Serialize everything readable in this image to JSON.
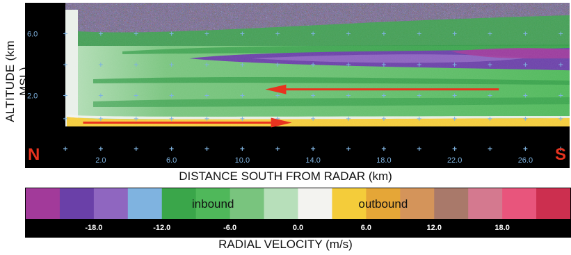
{
  "chart_data": {
    "type": "heatmap",
    "title": "",
    "xlabel": "DISTANCE SOUTH FROM RADAR (km)",
    "ylabel": "ALTITUDE (km MSL)",
    "x_ticks": [
      "2.0",
      "6.0",
      "10.0",
      "14.0",
      "18.0",
      "22.0",
      "26.0"
    ],
    "y_ticks": [
      "2.0",
      "6.0"
    ],
    "xlim": [
      0,
      28.5
    ],
    "ylim": [
      0,
      8
    ],
    "annotations": [
      {
        "text": "N",
        "position": "bottom-left",
        "color": "#e8331f"
      },
      {
        "text": "S",
        "position": "bottom-right",
        "color": "#e8331f"
      }
    ],
    "arrows": [
      {
        "from": [
          24.5,
          2.4
        ],
        "to": [
          11.3,
          2.4
        ],
        "color": "#e8331f",
        "meaning": "inbound flow aloft"
      },
      {
        "from": [
          1.0,
          0.25
        ],
        "to": [
          12.8,
          0.25
        ],
        "color": "#e8331f",
        "meaning": "outbound flow near surface"
      }
    ],
    "colorbar": {
      "label": "RADIAL VELOCITY (m/s)",
      "tick_labels": [
        "-18.0",
        "-12.0",
        "-6.0",
        "0.0",
        "6.0",
        "12.0",
        "18.0"
      ],
      "tick_values": [
        -18,
        -12,
        -6,
        0,
        6,
        12,
        18
      ],
      "range": [
        -24,
        24
      ],
      "region_labels": [
        {
          "text": "inbound",
          "center": -7.5
        },
        {
          "text": "outbound",
          "center": 7.5
        }
      ],
      "colors": [
        "#a23a9a",
        "#6a40a8",
        "#8f66c0",
        "#7fb3e0",
        "#3aa64a",
        "#4fb85a",
        "#79c47e",
        "#b7dfba",
        "#f3f3f0",
        "#f4cc3a",
        "#e5a637",
        "#d4945a",
        "#a9796a",
        "#d4798f",
        "#e8557c",
        "#cc2f4f"
      ]
    },
    "layers": [
      {
        "category": "near-surface outbound",
        "altitude_km": [
          0.0,
          0.5
        ],
        "x_km": [
          0.5,
          14.5
        ],
        "velocity": 5
      },
      {
        "category": "lower inbound",
        "altitude_km": [
          0.5,
          3.5
        ],
        "x_km": [
          0.5,
          28.5
        ],
        "velocity": -8
      },
      {
        "category": "mid inbound core",
        "altitude_km": [
          3.9,
          4.9
        ],
        "x_km": [
          7.0,
          28.5
        ],
        "velocity": -20
      },
      {
        "category": "upper noise",
        "altitude_km": [
          7.0,
          8.0
        ],
        "x_km": [
          0.0,
          28.5
        ],
        "velocity": 0
      }
    ]
  }
}
